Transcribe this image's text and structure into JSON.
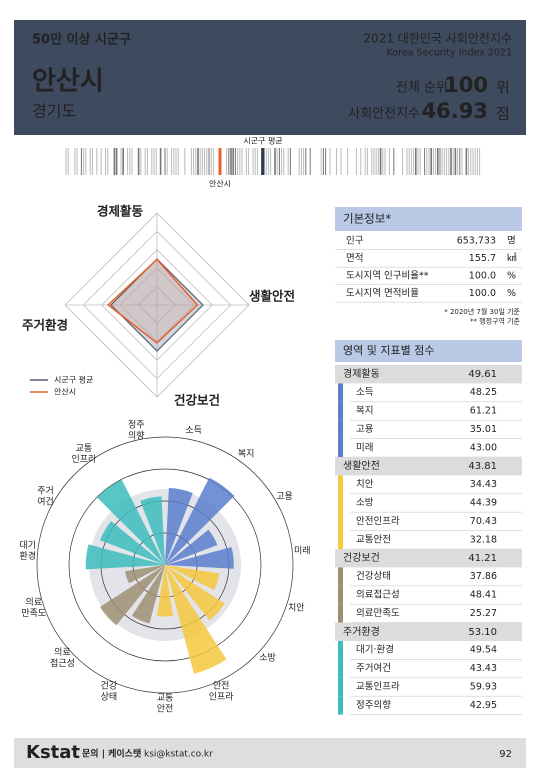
{
  "header": {
    "category": "50만 이상 시군구",
    "title": "2021 대한민국 사회안전지수",
    "subtitle": "Korea Security Index 2021",
    "city": "안산시",
    "province": "경기도",
    "rank_label": "전체 순위",
    "rank": 100,
    "rank_unit": "위",
    "index_label": "사회안전지수",
    "index": 46.93,
    "index_unit": "점"
  },
  "strip": {
    "average_label": "시군구 평균",
    "city_label": "안산시"
  },
  "radar": {
    "axes_source": "scores",
    "rlim": [
      0,
      100
    ],
    "rings": [
      20,
      40,
      60,
      80,
      100
    ],
    "average": {
      "name": "시군구 평균",
      "color": "#555f73",
      "values": [
        50,
        50,
        50,
        50
      ]
    },
    "city": {
      "name": "안산시",
      "color": "#e8602c"
    }
  },
  "polar": {
    "rlim": [
      0,
      80
    ],
    "rings": [
      20,
      40,
      60,
      80
    ],
    "labels": [
      [
        "소득"
      ],
      [
        "복지"
      ],
      [
        "고용"
      ],
      [
        "미래"
      ],
      [
        "치안"
      ],
      [
        "소방"
      ],
      [
        "안전",
        "인프라"
      ],
      [
        "교통",
        "안전"
      ],
      [
        "건강",
        "상태"
      ],
      [
        "의료",
        "접근성"
      ],
      [
        "의료",
        "만족도"
      ],
      [
        "대기",
        "환경"
      ],
      [
        "주거",
        "여건"
      ],
      [
        "교통",
        "인프라"
      ],
      [
        "정주",
        "의향"
      ]
    ]
  },
  "basic_info": {
    "title": "기본정보*",
    "rows": [
      {
        "label": "인구",
        "value": "653,733",
        "unit": "명"
      },
      {
        "label": "면적",
        "value": "155.7",
        "unit": "㎢"
      },
      {
        "label": "도시지역 인구비율**",
        "value": "100.0",
        "unit": "%"
      },
      {
        "label": "도시지역 면적비율",
        "value": "100.0",
        "unit": "%"
      }
    ],
    "notes": [
      "* 2020년 7월 30일 기준",
      "** 행정구역 기준"
    ]
  },
  "scores": {
    "title": "영역 및 지표별 점수",
    "groups": [
      {
        "name": "경제활동",
        "score": 49.61,
        "color": "#5b7fce",
        "items": [
          {
            "name": "소득",
            "score": 48.25
          },
          {
            "name": "복지",
            "score": 61.21
          },
          {
            "name": "고용",
            "score": 35.01
          },
          {
            "name": "미래",
            "score": 43,
            "label": "43.00"
          }
        ]
      },
      {
        "name": "생활안전",
        "score": 43.81,
        "color": "#f6c83e",
        "items": [
          {
            "name": "치안",
            "score": 34.43
          },
          {
            "name": "소방",
            "score": 44.39
          },
          {
            "name": "안전인프라",
            "score": 70.43
          },
          {
            "name": "교통안전",
            "score": 32.18
          }
        ]
      },
      {
        "name": "건강보건",
        "score": 41.21,
        "color": "#9e8f73",
        "items": [
          {
            "name": "건강상태",
            "score": 37.86
          },
          {
            "name": "의료접근성",
            "score": 48.41
          },
          {
            "name": "의료만족도",
            "score": 25.27
          }
        ]
      },
      {
        "name": "주거환경",
        "score": 53.1,
        "label": "53.10",
        "color": "#3cbcbc",
        "items": [
          {
            "name": "대기·환경",
            "score": 49.54
          },
          {
            "name": "주거여건",
            "score": 43.43
          },
          {
            "name": "교통인프라",
            "score": 59.93
          },
          {
            "name": "정주의향",
            "score": 42.95
          }
        ]
      }
    ]
  },
  "footer": {
    "logo": "Kstat",
    "contact": "문의 | 케이스탯",
    "email": "ksi@kstat.co.kr",
    "page": "92"
  }
}
